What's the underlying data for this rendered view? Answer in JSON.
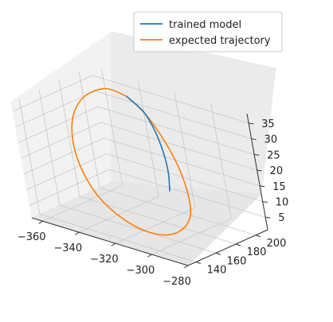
{
  "chart_data": {
    "type": "line",
    "projection": "3d",
    "legend_position": "top-right",
    "grid": true,
    "x_ticks": [
      "−360",
      "−340",
      "−320",
      "−300",
      "−280"
    ],
    "y_ticks": [
      "140",
      "160",
      "180",
      "200"
    ],
    "z_ticks": [
      "5",
      "10",
      "15",
      "20",
      "25",
      "30",
      "35"
    ],
    "xlim": [
      -366,
      -280
    ],
    "ylim": [
      132,
      212
    ],
    "zlim": [
      1,
      38
    ],
    "series": [
      {
        "name": "trained model",
        "color": "#1f77b4",
        "points": [
          {
            "x": -337,
            "y": 194,
            "z": 36
          },
          {
            "x": -330,
            "y": 196,
            "z": 32
          },
          {
            "x": -324,
            "y": 194,
            "z": 27
          },
          {
            "x": -319,
            "y": 190,
            "z": 22
          },
          {
            "x": -315,
            "y": 185,
            "z": 17
          },
          {
            "x": -313,
            "y": 180,
            "z": 12
          }
        ]
      },
      {
        "name": "expected trajectory",
        "color": "#ff7f0e",
        "points": [
          {
            "x": -337,
            "y": 194,
            "z": 36
          },
          {
            "x": -329,
            "y": 195,
            "z": 32
          },
          {
            "x": -320,
            "y": 192,
            "z": 27
          },
          {
            "x": -310,
            "y": 186,
            "z": 21
          },
          {
            "x": -301,
            "y": 177,
            "z": 15
          },
          {
            "x": -295,
            "y": 167,
            "z": 10
          },
          {
            "x": -294,
            "y": 157,
            "z": 7
          },
          {
            "x": -299,
            "y": 149,
            "z": 5
          },
          {
            "x": -309,
            "y": 145,
            "z": 5
          },
          {
            "x": -322,
            "y": 145,
            "z": 7
          },
          {
            "x": -336,
            "y": 149,
            "z": 11
          },
          {
            "x": -348,
            "y": 157,
            "z": 17
          },
          {
            "x": -356,
            "y": 167,
            "z": 23
          },
          {
            "x": -359,
            "y": 177,
            "z": 29
          },
          {
            "x": -356,
            "y": 186,
            "z": 34
          },
          {
            "x": -347,
            "y": 192,
            "z": 37
          },
          {
            "x": -337,
            "y": 194,
            "z": 36
          }
        ]
      }
    ]
  }
}
